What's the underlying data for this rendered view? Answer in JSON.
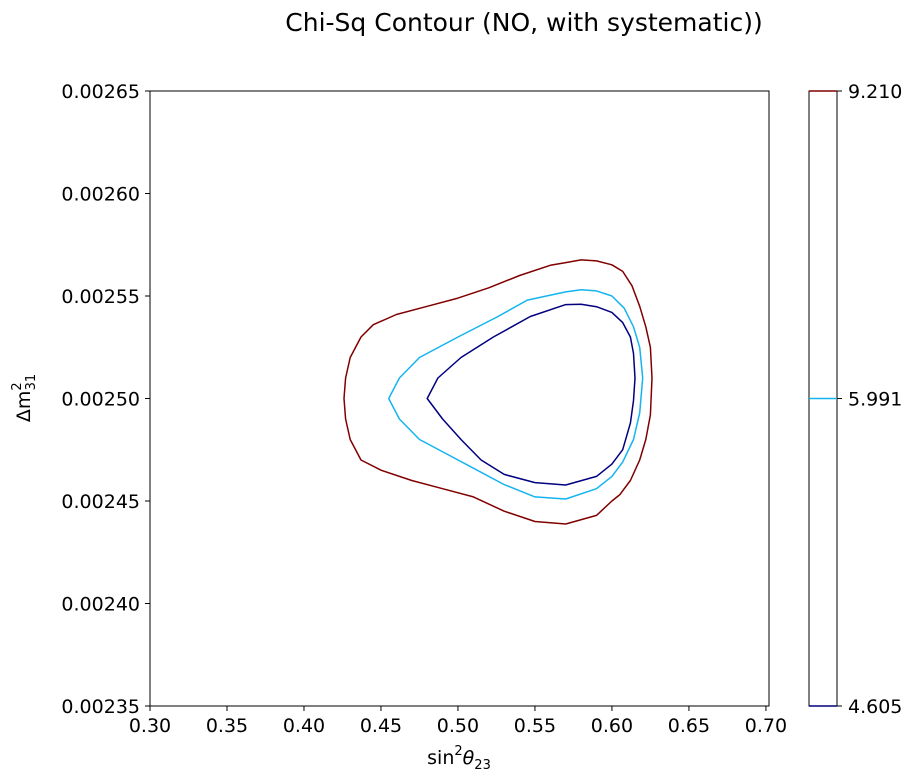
{
  "chart_data": {
    "type": "contour",
    "title": "Chi-Sq Contour (NO, with systematic))",
    "xlabel": {
      "base": "sin",
      "sup": "2",
      "greek": "θ",
      "sub": "23"
    },
    "ylabel": {
      "prefix": "Δm",
      "sup": "2",
      "sub": "31"
    },
    "xlim": [
      0.3,
      0.702
    ],
    "ylim": [
      0.00235,
      0.00265
    ],
    "xticks": [
      0.3,
      0.35,
      0.4,
      0.45,
      0.5,
      0.55,
      0.6,
      0.65,
      0.7
    ],
    "xtick_labels": [
      "0.30",
      "0.35",
      "0.40",
      "0.45",
      "0.50",
      "0.55",
      "0.60",
      "0.65",
      "0.70"
    ],
    "yticks": [
      0.00235,
      0.0024,
      0.00245,
      0.0025,
      0.00255,
      0.0026,
      0.00265
    ],
    "ytick_labels": [
      "0.00235",
      "0.00240",
      "0.00245",
      "0.00250",
      "0.00255",
      "0.00260",
      "0.00265"
    ],
    "grid": false,
    "colorbar": {
      "levels": [
        4.605,
        5.991,
        9.21
      ],
      "labels": [
        "4.605",
        "5.991",
        "9.210"
      ],
      "colors": [
        "#000080",
        "#14b4f0",
        "#800000"
      ]
    },
    "contours": [
      {
        "level": 4.605,
        "color": "#000080",
        "points": [
          [
            0.57,
            0.0025458
          ],
          [
            0.58,
            0.002546
          ],
          [
            0.59,
            0.0025448
          ],
          [
            0.6,
            0.002542
          ],
          [
            0.607,
            0.002537
          ],
          [
            0.612,
            0.00253
          ],
          [
            0.614,
            0.002522
          ],
          [
            0.615,
            0.00251
          ],
          [
            0.614,
            0.002499
          ],
          [
            0.612,
            0.002488
          ],
          [
            0.607,
            0.002475
          ],
          [
            0.6,
            0.002468
          ],
          [
            0.59,
            0.002462
          ],
          [
            0.57,
            0.0024578
          ],
          [
            0.55,
            0.002459
          ],
          [
            0.53,
            0.002463
          ],
          [
            0.515,
            0.00247
          ],
          [
            0.502,
            0.00248
          ],
          [
            0.49,
            0.00249
          ],
          [
            0.48,
            0.0025
          ],
          [
            0.487,
            0.00251
          ],
          [
            0.502,
            0.00252
          ],
          [
            0.523,
            0.00253
          ],
          [
            0.547,
            0.00254
          ]
        ]
      },
      {
        "level": 5.991,
        "color": "#14b4f0",
        "points": [
          [
            0.57,
            0.002552
          ],
          [
            0.58,
            0.002553
          ],
          [
            0.59,
            0.0025525
          ],
          [
            0.6,
            0.00255
          ],
          [
            0.608,
            0.002544
          ],
          [
            0.614,
            0.002535
          ],
          [
            0.618,
            0.002525
          ],
          [
            0.62,
            0.00251
          ],
          [
            0.618,
            0.002493
          ],
          [
            0.614,
            0.00248
          ],
          [
            0.607,
            0.002469
          ],
          [
            0.6,
            0.002462
          ],
          [
            0.59,
            0.002456
          ],
          [
            0.57,
            0.002451
          ],
          [
            0.55,
            0.002452
          ],
          [
            0.53,
            0.002458
          ],
          [
            0.51,
            0.002466
          ],
          [
            0.495,
            0.002472
          ],
          [
            0.475,
            0.00248
          ],
          [
            0.462,
            0.00249
          ],
          [
            0.455,
            0.0025
          ],
          [
            0.462,
            0.00251
          ],
          [
            0.475,
            0.00252
          ],
          [
            0.5,
            0.00253
          ],
          [
            0.526,
            0.00254
          ],
          [
            0.545,
            0.002548
          ]
        ]
      },
      {
        "level": 9.21,
        "color": "#800000",
        "points": [
          [
            0.57,
            0.0025663
          ],
          [
            0.58,
            0.0025676
          ],
          [
            0.59,
            0.0025671
          ],
          [
            0.6,
            0.0025652
          ],
          [
            0.607,
            0.002562
          ],
          [
            0.613,
            0.002555
          ],
          [
            0.618,
            0.002545
          ],
          [
            0.622,
            0.002535
          ],
          [
            0.625,
            0.002525
          ],
          [
            0.626,
            0.00251
          ],
          [
            0.625,
            0.002492
          ],
          [
            0.622,
            0.00248
          ],
          [
            0.618,
            0.00247
          ],
          [
            0.612,
            0.00246
          ],
          [
            0.605,
            0.002453
          ],
          [
            0.6,
            0.00245
          ],
          [
            0.59,
            0.002443
          ],
          [
            0.57,
            0.0024388
          ],
          [
            0.55,
            0.00244
          ],
          [
            0.53,
            0.002445
          ],
          [
            0.51,
            0.002452
          ],
          [
            0.49,
            0.002456
          ],
          [
            0.47,
            0.00246
          ],
          [
            0.45,
            0.002465
          ],
          [
            0.437,
            0.00247
          ],
          [
            0.43,
            0.00248
          ],
          [
            0.427,
            0.00249
          ],
          [
            0.426,
            0.0025
          ],
          [
            0.427,
            0.00251
          ],
          [
            0.43,
            0.00252
          ],
          [
            0.437,
            0.00253
          ],
          [
            0.445,
            0.002536
          ],
          [
            0.46,
            0.002541
          ],
          [
            0.48,
            0.002545
          ],
          [
            0.5,
            0.002549
          ],
          [
            0.52,
            0.002554
          ],
          [
            0.54,
            0.00256
          ],
          [
            0.56,
            0.002565
          ]
        ]
      }
    ]
  }
}
